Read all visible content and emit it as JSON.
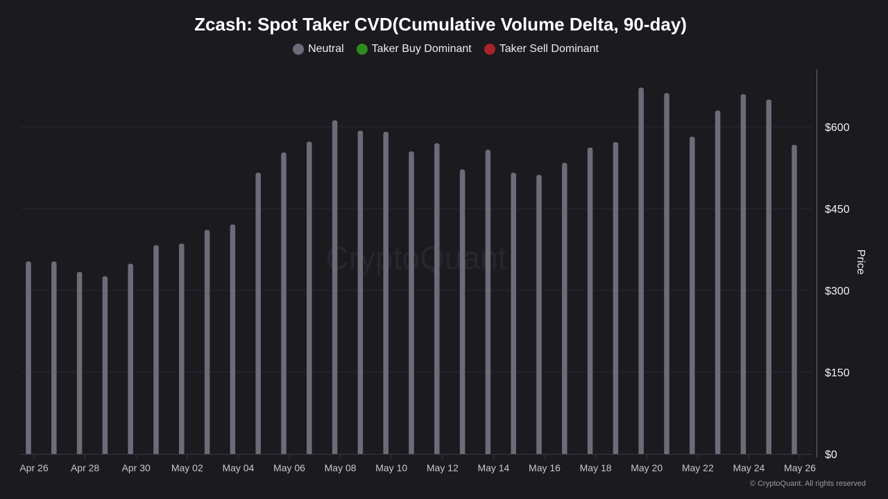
{
  "title": "Zcash: Spot Taker CVD(Cumulative Volume Delta, 90-day)",
  "legend": [
    {
      "label": "Neutral",
      "color": "#6e6b78"
    },
    {
      "label": "Taker Buy Dominant",
      "color": "#2e8b1e"
    },
    {
      "label": "Taker Sell Dominant",
      "color": "#a8242b"
    }
  ],
  "watermark": "CryptoQuant",
  "footer": "© CryptoQuant. All rights reserved",
  "chart_data": {
    "type": "bar",
    "ylabel": "Price",
    "ylim": [
      0,
      700
    ],
    "y_ticks": [
      0,
      150,
      300,
      450,
      600
    ],
    "y_tick_labels": [
      "$0",
      "$150",
      "$300",
      "$450",
      "$600"
    ],
    "x_tick_labels": [
      "Apr 26",
      "Apr 28",
      "Apr 30",
      "May 02",
      "May 04",
      "May 06",
      "May 08",
      "May 10",
      "May 12",
      "May 14",
      "May 16",
      "May 18",
      "May 20",
      "May 22",
      "May 24",
      "May 26"
    ],
    "grid": true,
    "y_axis_position": "right",
    "categories": [
      "Apr 26",
      "Apr 27",
      "Apr 28",
      "Apr 29",
      "Apr 30",
      "May 01",
      "May 02",
      "May 03",
      "May 04",
      "May 05",
      "May 06",
      "May 07",
      "May 08",
      "May 09",
      "May 10",
      "May 11",
      "May 12",
      "May 13",
      "May 14",
      "May 15",
      "May 16",
      "May 17",
      "May 18",
      "May 19",
      "May 20",
      "May 21",
      "May 22",
      "May 23",
      "May 24",
      "May 25",
      "May 26"
    ],
    "series": [
      {
        "name": "Neutral",
        "color": "#6e6b78",
        "values": [
          353,
          353,
          334,
          326,
          349,
          383,
          386,
          411,
          421,
          516,
          553,
          573,
          612,
          593,
          591,
          555,
          570,
          522,
          558,
          516,
          512,
          534,
          562,
          572,
          672,
          662,
          582,
          630,
          660,
          650,
          567
        ]
      }
    ]
  }
}
